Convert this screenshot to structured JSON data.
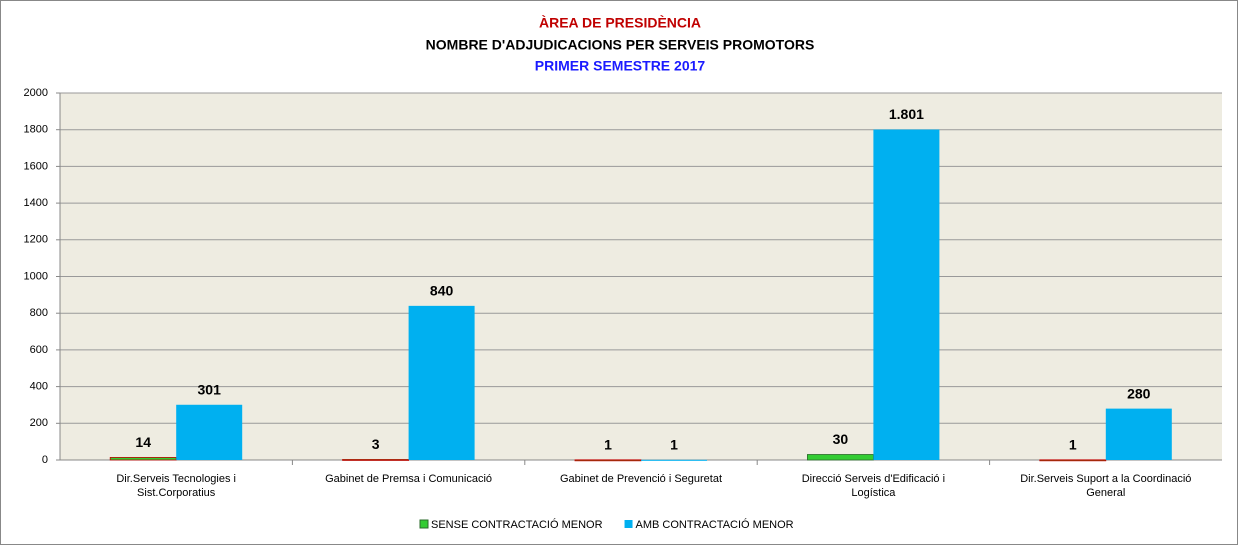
{
  "chart_data": {
    "type": "bar",
    "title": "ÀREA DE PRESIDÈNCIA",
    "subtitle": "NOMBRE D'ADJUDICACIONS PER SERVEIS PROMOTORS",
    "subtitle_2": "PRIMER SEMESTRE 2017",
    "categories": [
      "Dir.Serveis Tecnologies i Sist.Corporatius",
      "Gabinet de Premsa i Comunicació",
      "Gabinet de Prevenció i Seguretat",
      "Direcció Serveis d'Edificació i Logística",
      "Dir.Serveis Suport a la Coordinació General"
    ],
    "series": [
      {
        "name": "SENSE CONTRACTACIÓ MENOR",
        "color": "#33cc33",
        "values": [
          14,
          3,
          1,
          30,
          1
        ]
      },
      {
        "name": "AMB CONTRACTACIÓ MENOR",
        "color": "#00b0f0",
        "values": [
          301,
          840,
          1,
          1801,
          280
        ],
        "value_labels": [
          "301",
          "840",
          "1",
          "1.801",
          "280"
        ]
      }
    ],
    "ylim": [
      0,
      2000
    ],
    "yticks": [
      0,
      200,
      400,
      600,
      800,
      1000,
      1200,
      1400,
      1600,
      1800,
      2000
    ],
    "grid": true,
    "legend": "bottom"
  }
}
